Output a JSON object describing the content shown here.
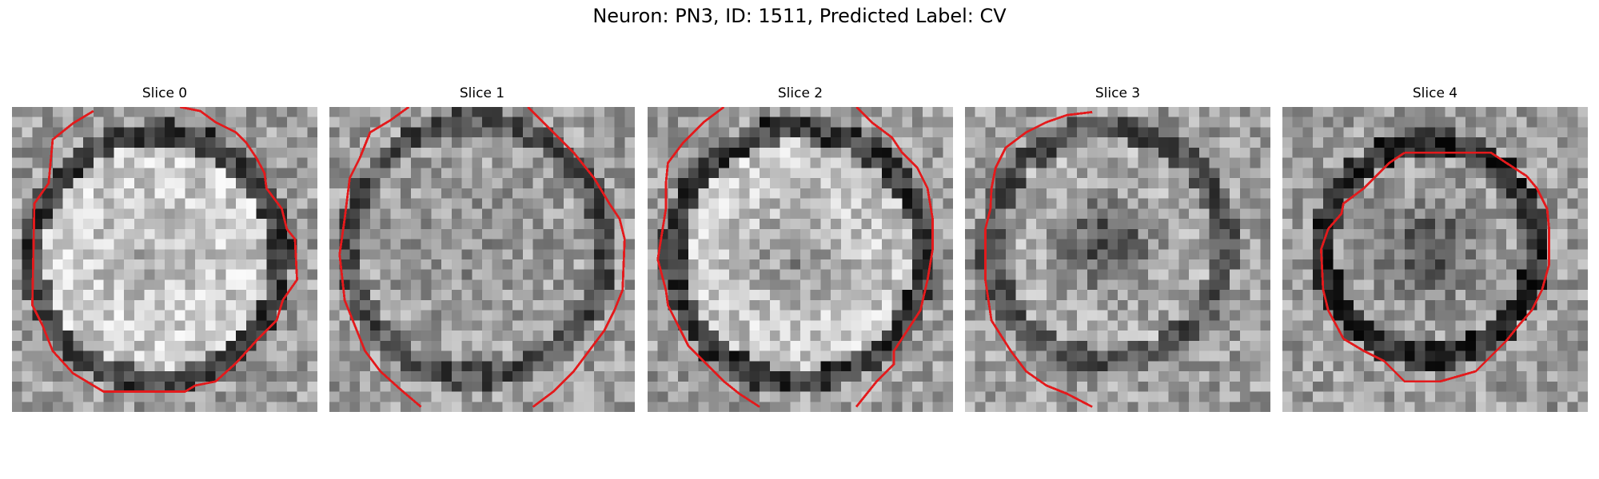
{
  "figure": {
    "title": "Neuron: PN3, ID: 1511, Predicted Label: CV"
  },
  "panels": [
    {
      "title": "Slice 0"
    },
    {
      "title": "Slice 1"
    },
    {
      "title": "Slice 2"
    },
    {
      "title": "Slice 3"
    },
    {
      "title": "Slice 4"
    }
  ],
  "contour_color": "#e31a1c"
}
